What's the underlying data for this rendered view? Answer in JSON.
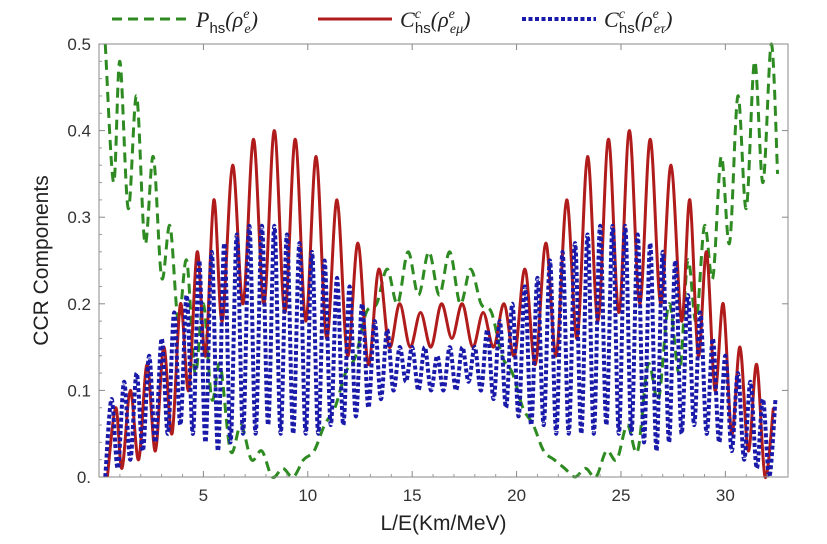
{
  "chart_data": {
    "type": "line",
    "xlabel": "L/E(Km/MeV)",
    "ylabel": "CCR Components",
    "xlim": [
      0,
      33
    ],
    "ylim": [
      0,
      0.5
    ],
    "x_ticks": [
      5,
      10,
      15,
      20,
      25,
      30
    ],
    "x_tick_labels": [
      "5",
      "10",
      "15",
      "20",
      "25",
      "30"
    ],
    "y_ticks": [
      0,
      0.1,
      0.2,
      0.3,
      0.4,
      0.5
    ],
    "y_tick_labels": [
      "0.",
      "0.1",
      "0.2",
      "0.3",
      "0.4",
      "0.5"
    ],
    "legend_position": "top",
    "series": [
      {
        "name": "P_hs(ρ^e_e)",
        "legend": {
          "base": "P",
          "sub": "hs",
          "mid": "(ρ",
          "sup2": "e",
          "sub2": "e",
          "end": ")"
        },
        "color": "#2e8b22",
        "style": "dashed",
        "x": [
          0.3,
          0.7,
          1.0,
          1.4,
          1.8,
          2.2,
          2.6,
          3.0,
          3.4,
          3.8,
          4.2,
          4.6,
          5.0,
          5.4,
          5.8,
          6.3,
          6.8,
          7.3,
          7.8,
          8.3,
          8.8,
          9.3,
          9.8,
          10.3,
          10.8,
          11.3,
          11.8,
          12.3,
          12.8,
          13.3,
          13.8,
          14.3,
          14.8,
          15.3,
          15.8,
          16.3,
          16.8,
          17.3,
          17.8,
          18.3,
          18.8,
          19.3,
          19.8,
          20.3,
          20.8,
          21.3,
          21.8,
          22.3,
          22.8,
          23.3,
          23.8,
          24.3,
          24.8,
          25.3,
          25.8,
          26.3,
          26.8,
          27.3,
          27.8,
          28.2,
          28.6,
          29.0,
          29.4,
          29.8,
          30.2,
          30.6,
          31.0,
          31.4,
          31.8,
          32.2,
          32.5
        ],
        "values": [
          0.5,
          0.34,
          0.48,
          0.31,
          0.44,
          0.27,
          0.37,
          0.23,
          0.29,
          0.18,
          0.25,
          0.12,
          0.2,
          0.09,
          0.13,
          0.03,
          0.06,
          0.02,
          0.03,
          0.0,
          0.01,
          0.0,
          0.02,
          0.03,
          0.06,
          0.08,
          0.12,
          0.14,
          0.19,
          0.2,
          0.24,
          0.2,
          0.26,
          0.21,
          0.26,
          0.21,
          0.26,
          0.2,
          0.24,
          0.2,
          0.19,
          0.14,
          0.12,
          0.08,
          0.06,
          0.03,
          0.02,
          0.01,
          0.0,
          0.01,
          0.0,
          0.03,
          0.02,
          0.06,
          0.03,
          0.13,
          0.09,
          0.2,
          0.12,
          0.25,
          0.18,
          0.29,
          0.23,
          0.37,
          0.27,
          0.44,
          0.31,
          0.48,
          0.34,
          0.5,
          0.35
        ]
      },
      {
        "name": "C^c_hs(ρ^e_eμ)",
        "legend": {
          "base": "C",
          "sup": "c",
          "sub": "hs",
          "mid": "(ρ",
          "sup2": "e",
          "sub2": "eμ",
          "end": ")"
        },
        "color": "#b01c1c",
        "style": "solid",
        "x": [
          0.4,
          0.8,
          1.1,
          1.5,
          1.9,
          2.3,
          2.7,
          3.1,
          3.5,
          3.9,
          4.3,
          4.7,
          5.1,
          5.5,
          5.9,
          6.4,
          6.9,
          7.4,
          7.9,
          8.4,
          8.9,
          9.4,
          9.9,
          10.4,
          10.9,
          11.4,
          11.9,
          12.4,
          12.9,
          13.4,
          13.9,
          14.4,
          14.9,
          15.4,
          15.9,
          16.4,
          16.9,
          17.4,
          17.9,
          18.4,
          18.9,
          19.4,
          19.9,
          20.4,
          20.9,
          21.4,
          21.9,
          22.4,
          22.9,
          23.4,
          23.9,
          24.4,
          24.9,
          25.4,
          25.9,
          26.4,
          26.9,
          27.4,
          27.9,
          28.3,
          28.7,
          29.1,
          29.5,
          29.9,
          30.3,
          30.7,
          31.1,
          31.5,
          31.9,
          32.3
        ],
        "values": [
          0.0,
          0.08,
          0.01,
          0.1,
          0.02,
          0.13,
          0.03,
          0.15,
          0.05,
          0.2,
          0.1,
          0.26,
          0.14,
          0.32,
          0.18,
          0.36,
          0.2,
          0.39,
          0.2,
          0.4,
          0.19,
          0.39,
          0.18,
          0.37,
          0.16,
          0.32,
          0.14,
          0.27,
          0.13,
          0.24,
          0.15,
          0.2,
          0.15,
          0.19,
          0.15,
          0.2,
          0.16,
          0.2,
          0.15,
          0.19,
          0.15,
          0.2,
          0.14,
          0.24,
          0.13,
          0.27,
          0.14,
          0.32,
          0.16,
          0.37,
          0.18,
          0.39,
          0.19,
          0.4,
          0.2,
          0.39,
          0.2,
          0.36,
          0.18,
          0.32,
          0.14,
          0.26,
          0.1,
          0.2,
          0.05,
          0.15,
          0.03,
          0.13,
          0.0,
          0.08
        ]
      },
      {
        "name": "C^c_hs(ρ^e_eτ)",
        "legend": {
          "base": "C",
          "sup": "c",
          "sub": "hs",
          "mid": "(ρ",
          "sup2": "e",
          "sub2": "eτ",
          "end": ")"
        },
        "color": "#1a1aaa",
        "style": "dotted",
        "x": [
          0.3,
          0.6,
          0.9,
          1.2,
          1.5,
          1.8,
          2.1,
          2.4,
          2.7,
          3.0,
          3.3,
          3.6,
          3.9,
          4.2,
          4.5,
          4.8,
          5.1,
          5.4,
          5.7,
          6.0,
          6.3,
          6.6,
          6.9,
          7.2,
          7.5,
          7.8,
          8.1,
          8.4,
          8.7,
          9.0,
          9.3,
          9.6,
          9.9,
          10.2,
          10.5,
          10.8,
          11.1,
          11.4,
          11.7,
          12.0,
          12.3,
          12.6,
          12.9,
          13.2,
          13.5,
          13.8,
          14.1,
          14.4,
          14.7,
          15.0,
          15.3,
          15.6,
          15.9,
          16.2,
          16.5,
          16.8,
          17.1,
          17.4,
          17.7,
          18.0,
          18.3,
          18.6,
          18.9,
          19.2,
          19.5,
          19.8,
          20.1,
          20.4,
          20.7,
          21.0,
          21.3,
          21.6,
          21.9,
          22.2,
          22.5,
          22.8,
          23.1,
          23.4,
          23.7,
          24.0,
          24.3,
          24.6,
          24.9,
          25.2,
          25.5,
          25.8,
          26.1,
          26.4,
          26.7,
          27.0,
          27.3,
          27.6,
          27.9,
          28.2,
          28.5,
          28.8,
          29.1,
          29.4,
          29.7,
          30.0,
          30.3,
          30.6,
          30.9,
          31.2,
          31.5,
          31.8,
          32.1,
          32.4
        ],
        "values": [
          0.0,
          0.09,
          0.01,
          0.11,
          0.02,
          0.12,
          0.03,
          0.14,
          0.04,
          0.16,
          0.05,
          0.19,
          0.06,
          0.21,
          0.05,
          0.25,
          0.04,
          0.26,
          0.03,
          0.27,
          0.04,
          0.28,
          0.05,
          0.29,
          0.05,
          0.29,
          0.06,
          0.29,
          0.05,
          0.28,
          0.05,
          0.27,
          0.05,
          0.26,
          0.05,
          0.25,
          0.06,
          0.23,
          0.06,
          0.22,
          0.07,
          0.2,
          0.08,
          0.18,
          0.09,
          0.17,
          0.1,
          0.15,
          0.11,
          0.15,
          0.1,
          0.15,
          0.1,
          0.14,
          0.1,
          0.15,
          0.1,
          0.15,
          0.11,
          0.15,
          0.1,
          0.17,
          0.09,
          0.18,
          0.08,
          0.2,
          0.07,
          0.22,
          0.06,
          0.23,
          0.06,
          0.25,
          0.05,
          0.26,
          0.05,
          0.27,
          0.05,
          0.28,
          0.05,
          0.29,
          0.06,
          0.29,
          0.05,
          0.29,
          0.05,
          0.28,
          0.04,
          0.27,
          0.03,
          0.26,
          0.04,
          0.25,
          0.05,
          0.21,
          0.06,
          0.19,
          0.05,
          0.16,
          0.04,
          0.14,
          0.03,
          0.12,
          0.02,
          0.11,
          0.01,
          0.09,
          0.0,
          0.09
        ]
      }
    ]
  }
}
